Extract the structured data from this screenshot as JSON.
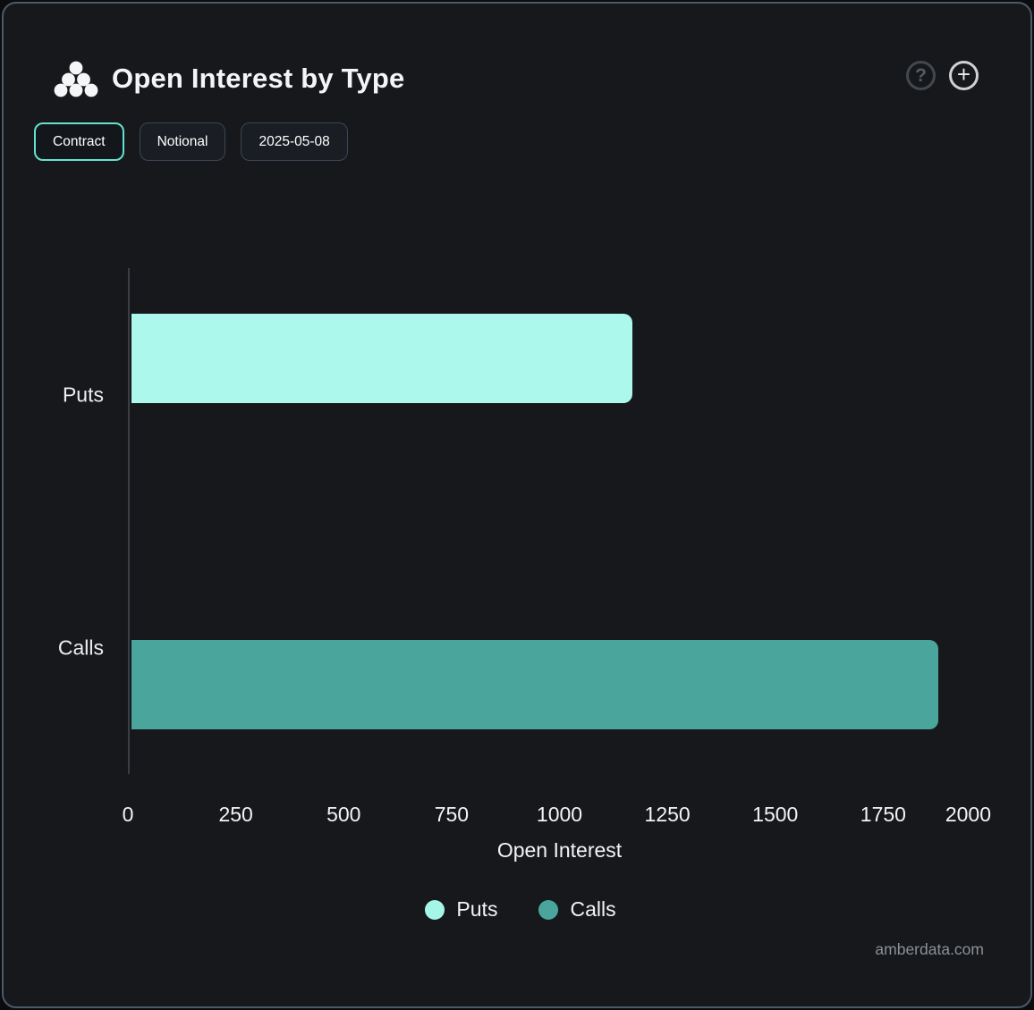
{
  "header": {
    "title": "Open Interest by Type",
    "logo_icon": "amberdata-dots-logo",
    "help_label": "?",
    "add_label": "+"
  },
  "toolbar": {
    "buttons": [
      {
        "label": "Contract",
        "active": true
      },
      {
        "label": "Notional",
        "active": false
      },
      {
        "label": "2025-05-08",
        "active": false
      }
    ]
  },
  "chart_data": {
    "type": "bar",
    "orientation": "horizontal",
    "title": "Open Interest by Type",
    "categories": [
      "Puts",
      "Calls"
    ],
    "values": [
      1160,
      1870
    ],
    "bar_colors": [
      "#acf8ec",
      "#4aa69c"
    ],
    "xlabel": "Open Interest",
    "xlim": [
      0,
      2000
    ],
    "xticks": [
      0,
      250,
      500,
      750,
      1000,
      1250,
      1500,
      1750,
      2000
    ],
    "grid": false,
    "legend_position": "bottom",
    "legend": [
      {
        "label": "Puts",
        "color": "#a5f6e6"
      },
      {
        "label": "Calls",
        "color": "#4aa69c"
      }
    ]
  },
  "watermark": "amberdata.com",
  "colors": {
    "card_background": "#16181b",
    "card_border": "#4e586a",
    "axis_line": "#3a3e44",
    "active_button_border": "#63e2d0"
  }
}
